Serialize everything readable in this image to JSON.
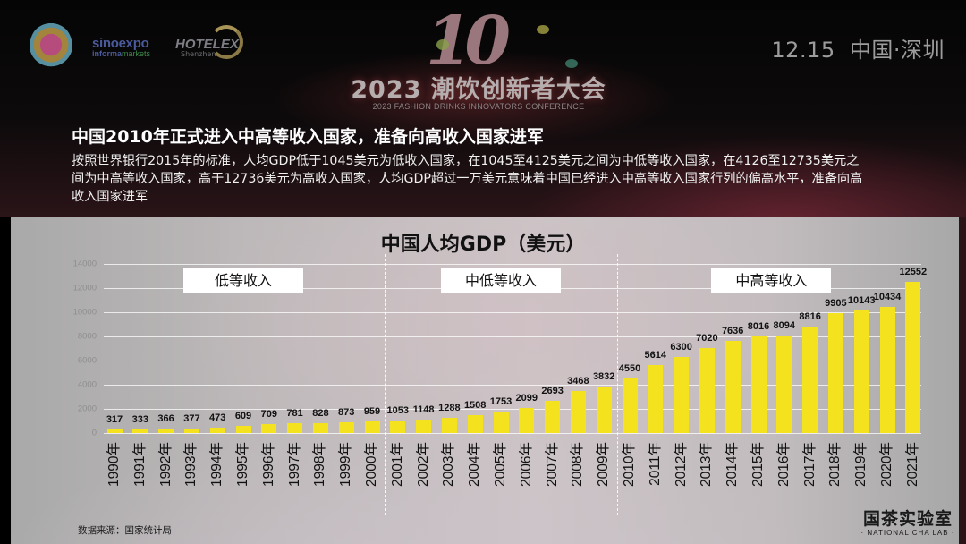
{
  "header": {
    "logos": [
      "flower-festival-logo",
      "sinoexpo informa markets",
      "HOTELEX Shenzhen"
    ],
    "sinoexpo_line1": "sinoexpo",
    "sinoexpo_line2a": "informa",
    "sinoexpo_line2b": "markets",
    "hotelex_line1": "HOTELEX",
    "hotelex_line2": "Shenzhen",
    "conference_number": "10",
    "conference_title": "2023 潮饮创新者大会",
    "conference_subtitle": "2023 FASHION DRINKS INNOVATORS CONFERENCE",
    "date_location": "12.15  中国·深圳"
  },
  "headline": "中国2010年正式进入中高等收入国家，准备向高收入国家进军",
  "description": "按照世界银行2015年的标准，人均GDP低于1045美元为低收入国家，在1045至4125美元之间为中低等收入国家，在4126至12735美元之间为中高等收入国家，高于12736美元为高收入国家，人均GDP超过一万美元意味着中国已经进入中高等收入国家行列的偏高水平，准备向高收入国家进军",
  "footer": {
    "source": "数据来源：国家统计局",
    "lab_cn": "国茶实验室",
    "lab_en": "· NATIONAL CHA LAB ·"
  },
  "colors": {
    "bar": "#f5e21f",
    "label_bg": "#ffffff",
    "text_dark": "#111111"
  },
  "chart_data": {
    "type": "bar",
    "title": "中国人均GDP（美元）",
    "xlabel": "",
    "ylabel": "",
    "ylim": [
      0,
      14000
    ],
    "yticks": [
      0,
      2000,
      4000,
      6000,
      8000,
      10000,
      12000,
      14000
    ],
    "grid": true,
    "legend": null,
    "categories": [
      "1990年",
      "1991年",
      "1992年",
      "1993年",
      "1994年",
      "1995年",
      "1996年",
      "1997年",
      "1998年",
      "1999年",
      "2000年",
      "2001年",
      "2002年",
      "2003年",
      "2004年",
      "2005年",
      "2006年",
      "2007年",
      "2008年",
      "2009年",
      "2010年",
      "2011年",
      "2012年",
      "2013年",
      "2014年",
      "2015年",
      "2016年",
      "2017年",
      "2018年",
      "2019年",
      "2020年",
      "2021年"
    ],
    "values": [
      317,
      333,
      366,
      377,
      473,
      609,
      709,
      781,
      828,
      873,
      959,
      1053,
      1148,
      1288,
      1508,
      1753,
      2099,
      2693,
      3468,
      3832,
      4550,
      5614,
      6300,
      7020,
      7636,
      8016,
      8094,
      8816,
      9905,
      10143,
      10434,
      12552
    ],
    "data_labels": true,
    "annotations": [
      {
        "text": "低等收入",
        "range": [
          "1990年",
          "2000年"
        ]
      },
      {
        "text": "中低等收入",
        "range": [
          "2001年",
          "2009年"
        ]
      },
      {
        "text": "中高等收入",
        "range": [
          "2010年",
          "2021年"
        ]
      }
    ],
    "dividers_after": [
      "2000年",
      "2009年"
    ]
  }
}
